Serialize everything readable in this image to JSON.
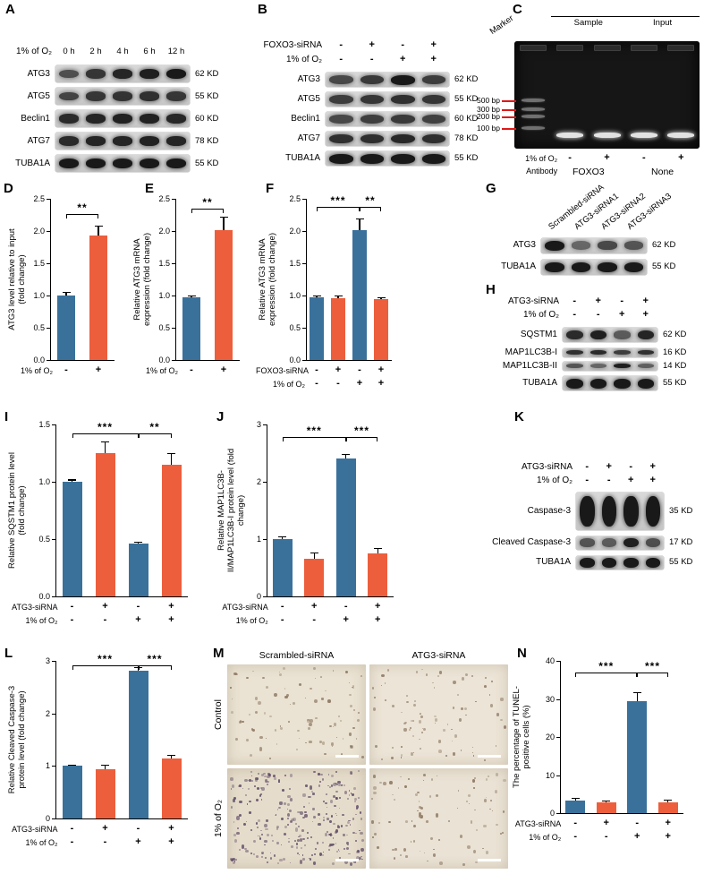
{
  "colors": {
    "blue": "#39719b",
    "orange": "#ed5e3c",
    "band": "#191919",
    "red": "#e01818"
  },
  "panels": {
    "A": {
      "label": "A",
      "condition": "1% of O₂",
      "lanes": [
        "0 h",
        "2 h",
        "4 h",
        "6 h",
        "12 h"
      ],
      "rows": [
        {
          "name": "ATG3",
          "kd": "62 KD",
          "bands": [
            0.55,
            0.75,
            0.9,
            0.95,
            1
          ]
        },
        {
          "name": "ATG5",
          "kd": "55 KD",
          "bands": [
            0.65,
            0.75,
            0.78,
            0.8,
            0.75
          ]
        },
        {
          "name": "Beclin1",
          "kd": "60 KD",
          "bands": [
            0.85,
            0.9,
            0.92,
            0.92,
            0.88
          ]
        },
        {
          "name": "ATG7",
          "kd": "78 KD",
          "bands": [
            0.85,
            0.9,
            0.9,
            0.92,
            0.9
          ]
        },
        {
          "name": "TUBA1A",
          "kd": "55 KD",
          "bands": [
            1,
            1,
            1,
            1,
            1
          ]
        }
      ]
    },
    "B": {
      "label": "B",
      "header_rows": [
        {
          "label": "FOXO3-siRNA",
          "symbols": [
            "-",
            "+",
            "-",
            "+"
          ]
        },
        {
          "label": "1% of O₂",
          "symbols": [
            "-",
            "-",
            "+",
            "+"
          ]
        }
      ],
      "rows": [
        {
          "name": "ATG3",
          "kd": "62 KD",
          "bands": [
            0.6,
            0.72,
            1,
            0.7
          ]
        },
        {
          "name": "ATG5",
          "kd": "55 KD",
          "bands": [
            0.7,
            0.75,
            0.8,
            0.75
          ]
        },
        {
          "name": "Beclin1",
          "kd": "60 KD",
          "bands": [
            0.6,
            0.68,
            0.72,
            0.66
          ]
        },
        {
          "name": "ATG7",
          "kd": "78 KD",
          "bands": [
            0.8,
            0.82,
            0.86,
            0.82
          ]
        },
        {
          "name": "TUBA1A",
          "kd": "55 KD",
          "bands": [
            1,
            1,
            1,
            1
          ]
        }
      ]
    },
    "C": {
      "label": "C",
      "marker": "Marker",
      "groups": [
        "Sample",
        "Input"
      ],
      "ladder": [
        "500 bp",
        "300 bp",
        "200 bp",
        "100 bp"
      ],
      "footer_rows": [
        {
          "label": "1% of O₂",
          "symbols": [
            "-",
            "+",
            "-",
            "+"
          ]
        }
      ],
      "antibody_row": {
        "label": "Antibody",
        "groups": [
          "FOXO3",
          "None"
        ]
      }
    },
    "D": {
      "label": "D"
    },
    "E": {
      "label": "E"
    },
    "F": {
      "label": "F"
    },
    "G": {
      "label": "G",
      "lanes": [
        "Scrambled-siRNA",
        "ATG3-siRNA1",
        "ATG3-siRNA2",
        "ATG3-siRNA3"
      ],
      "rows": [
        {
          "name": "ATG3",
          "kd": "62 KD",
          "bands": [
            1,
            0.35,
            0.6,
            0.5
          ]
        },
        {
          "name": "TUBA1A",
          "kd": "55 KD",
          "bands": [
            1,
            1,
            1,
            1
          ]
        }
      ]
    },
    "H": {
      "label": "H",
      "header_rows": [
        {
          "label": "ATG3-siRNA",
          "symbols": [
            "-",
            "+",
            "-",
            "+"
          ]
        },
        {
          "label": "1% of O₂",
          "symbols": [
            "-",
            "-",
            "+",
            "+"
          ]
        }
      ],
      "rows": [
        {
          "name": "SQSTM1",
          "kd": "62 KD",
          "bands": [
            0.85,
            0.95,
            0.45,
            0.9
          ]
        },
        {
          "name": "MAP1LC3B-I",
          "kd": "16 KD",
          "bands": [
            0.8,
            0.85,
            0.7,
            0.8
          ],
          "thin": true
        },
        {
          "name": "MAP1LC3B-II",
          "kd": "14 KD",
          "bands": [
            0.5,
            0.35,
            0.95,
            0.4
          ],
          "thin": true
        },
        {
          "name": "TUBA1A",
          "kd": "55 KD",
          "bands": [
            1,
            1,
            1,
            1
          ]
        }
      ]
    },
    "I": {
      "label": "I"
    },
    "J": {
      "label": "J"
    },
    "K": {
      "label": "K",
      "header_rows": [
        {
          "label": "ATG3-siRNA",
          "symbols": [
            "-",
            "+",
            "-",
            "+"
          ]
        },
        {
          "label": "1% of O₂",
          "symbols": [
            "-",
            "-",
            "+",
            "+"
          ]
        }
      ],
      "rows": [
        {
          "name": "Caspase-3",
          "kd": "35 KD",
          "bands": [
            1,
            1,
            1,
            1
          ],
          "big": true
        },
        {
          "name": "Cleaved Caspase-3",
          "kd": "17 KD",
          "bands": [
            0.5,
            0.45,
            0.95,
            0.55
          ]
        },
        {
          "name": "TUBA1A",
          "kd": "55 KD",
          "bands": [
            1,
            1,
            1,
            1
          ]
        }
      ]
    },
    "L": {
      "label": "L"
    },
    "M": {
      "label": "M",
      "col_headers": [
        "Scrambled-siRNA",
        "ATG3-siRNA"
      ],
      "row_headers": [
        "Control",
        "1% of O₂"
      ],
      "images": [
        {
          "row": "Control",
          "col": "Scrambled-siRNA",
          "dots": 95,
          "dot_color": "#8a755e",
          "bg": "#eae2d2",
          "seed": 11
        },
        {
          "row": "Control",
          "col": "ATG3-siRNA",
          "dots": 85,
          "dot_color": "#8d7863",
          "bg": "#ece4d6",
          "seed": 23
        },
        {
          "row": "1% of O₂",
          "col": "Scrambled-siRNA",
          "dots": 300,
          "dot_color": "#5e4c66",
          "bg": "#e6dccb",
          "seed": 37
        },
        {
          "row": "1% of O₂",
          "col": "ATG3-siRNA",
          "dots": 90,
          "dot_color": "#8a755e",
          "bg": "#eae2d4",
          "seed": 53
        }
      ]
    },
    "N": {
      "label": "N"
    }
  },
  "chart_data": [
    {
      "id": "D",
      "type": "bar",
      "ylabel": "ATG3 level relative to input (fold change)",
      "ylim": [
        0,
        2.5
      ],
      "yticks": [
        "0.0",
        "0.5",
        "1.0",
        "1.5",
        "2.0",
        "2.5"
      ],
      "values": [
        1.0,
        1.93
      ],
      "errors": [
        0.06,
        0.16
      ],
      "bar_colors": [
        "blue",
        "orange"
      ],
      "xrows": [
        {
          "label": "1% of O₂",
          "symbols": [
            "-",
            "+"
          ]
        }
      ],
      "sigs": [
        {
          "from": 0,
          "to": 1,
          "label": "**",
          "y": 2.27
        }
      ]
    },
    {
      "id": "E",
      "type": "bar",
      "ylabel": "Relative ATG3 mRNA expression (fold change)",
      "ylim": [
        0,
        2.5
      ],
      "yticks": [
        "0.0",
        "0.5",
        "1.0",
        "1.5",
        "2.0",
        "2.5"
      ],
      "values": [
        0.97,
        2.02
      ],
      "errors": [
        0.03,
        0.2
      ],
      "bar_colors": [
        "blue",
        "orange"
      ],
      "xrows": [
        {
          "label": "1% of O₂",
          "symbols": [
            "-",
            "+"
          ]
        }
      ],
      "sigs": [
        {
          "from": 0,
          "to": 1,
          "label": "**",
          "y": 2.35
        }
      ]
    },
    {
      "id": "F",
      "type": "bar",
      "ylabel": "Relative ATG3 mRNA expression (fold change)",
      "ylim": [
        0,
        2.5
      ],
      "yticks": [
        "0.0",
        "0.5",
        "1.0",
        "1.5",
        "2.0",
        "2.5"
      ],
      "values": [
        0.97,
        0.96,
        2.02,
        0.94
      ],
      "errors": [
        0.03,
        0.04,
        0.18,
        0.03
      ],
      "bar_colors": [
        "blue",
        "orange",
        "blue",
        "orange"
      ],
      "xrows": [
        {
          "label": "FOXO3-siRNA",
          "symbols": [
            "-",
            "+",
            "-",
            "+"
          ]
        },
        {
          "label": "1% of O₂",
          "symbols": [
            "-",
            "-",
            "+",
            "+"
          ]
        }
      ],
      "sigs": [
        {
          "from": 0,
          "to": 2,
          "label": "***",
          "y": 2.38
        },
        {
          "from": 2,
          "to": 3,
          "label": "**",
          "y": 2.38
        }
      ]
    },
    {
      "id": "I",
      "type": "bar",
      "ylabel": "Relative SQSTM1 protein level (fold change)",
      "ylim": [
        0,
        1.5
      ],
      "yticks": [
        "0.0",
        "0.5",
        "1.0",
        "1.5"
      ],
      "values": [
        1.0,
        1.25,
        0.46,
        1.15
      ],
      "errors": [
        0.02,
        0.1,
        0.02,
        0.1
      ],
      "bar_colors": [
        "blue",
        "orange",
        "blue",
        "orange"
      ],
      "xrows": [
        {
          "label": "ATG3-siRNA",
          "symbols": [
            "-",
            "+",
            "-",
            "+"
          ]
        },
        {
          "label": "1% of O₂",
          "symbols": [
            "-",
            "-",
            "+",
            "+"
          ]
        }
      ],
      "sigs": [
        {
          "from": 0,
          "to": 2,
          "label": "***",
          "y": 1.42
        },
        {
          "from": 2,
          "to": 3,
          "label": "**",
          "y": 1.42
        }
      ]
    },
    {
      "id": "J",
      "type": "bar",
      "ylabel": "Relative MAP1LC3B-II/MAP1LC3B-I protein level (fold change)",
      "ylim": [
        0,
        3
      ],
      "yticks": [
        "0",
        "1",
        "2",
        "3"
      ],
      "values": [
        1.0,
        0.65,
        2.4,
        0.75
      ],
      "errors": [
        0.05,
        0.12,
        0.08,
        0.1
      ],
      "bar_colors": [
        "blue",
        "orange",
        "blue",
        "orange"
      ],
      "xrows": [
        {
          "label": "ATG3-siRNA",
          "symbols": [
            "-",
            "+",
            "-",
            "+"
          ]
        },
        {
          "label": "1% of O₂",
          "symbols": [
            "-",
            "-",
            "+",
            "+"
          ]
        }
      ],
      "sigs": [
        {
          "from": 0,
          "to": 2,
          "label": "***",
          "y": 2.78
        },
        {
          "from": 2,
          "to": 3,
          "label": "***",
          "y": 2.78
        }
      ]
    },
    {
      "id": "L",
      "type": "bar",
      "ylabel": "Relative Cleaved Caspase-3 protein level (fold change)",
      "ylim": [
        0,
        3
      ],
      "yticks": [
        "0",
        "1",
        "2",
        "3"
      ],
      "values": [
        1.0,
        0.93,
        2.82,
        1.15
      ],
      "errors": [
        0.03,
        0.1,
        0.06,
        0.06
      ],
      "bar_colors": [
        "blue",
        "orange",
        "blue",
        "orange"
      ],
      "xrows": [
        {
          "label": "ATG3-siRNA",
          "symbols": [
            "-",
            "+",
            "-",
            "+"
          ]
        },
        {
          "label": "1% of O₂",
          "symbols": [
            "-",
            "-",
            "+",
            "+"
          ]
        }
      ],
      "sigs": [
        {
          "from": 0,
          "to": 2,
          "label": "***",
          "y": 2.92
        },
        {
          "from": 2,
          "to": 3,
          "label": "***",
          "y": 2.92
        }
      ]
    },
    {
      "id": "N",
      "type": "bar",
      "ylabel": "The percentage of TUNEL-positive cells (%)",
      "ylim": [
        0,
        40
      ],
      "yticks": [
        "0",
        "10",
        "20",
        "30",
        "40"
      ],
      "values": [
        3.2,
        2.8,
        29.5,
        2.8
      ],
      "errors": [
        0.8,
        0.6,
        2.3,
        0.8
      ],
      "bar_colors": [
        "blue",
        "orange",
        "blue",
        "orange"
      ],
      "xrows": [
        {
          "label": "ATG3-siRNA",
          "symbols": [
            "-",
            "+",
            "-",
            "+"
          ]
        },
        {
          "label": "1% of O₂",
          "symbols": [
            "-",
            "-",
            "+",
            "+"
          ]
        }
      ],
      "sigs": [
        {
          "from": 0,
          "to": 2,
          "label": "***",
          "y": 37
        },
        {
          "from": 2,
          "to": 3,
          "label": "***",
          "y": 37
        }
      ]
    }
  ]
}
